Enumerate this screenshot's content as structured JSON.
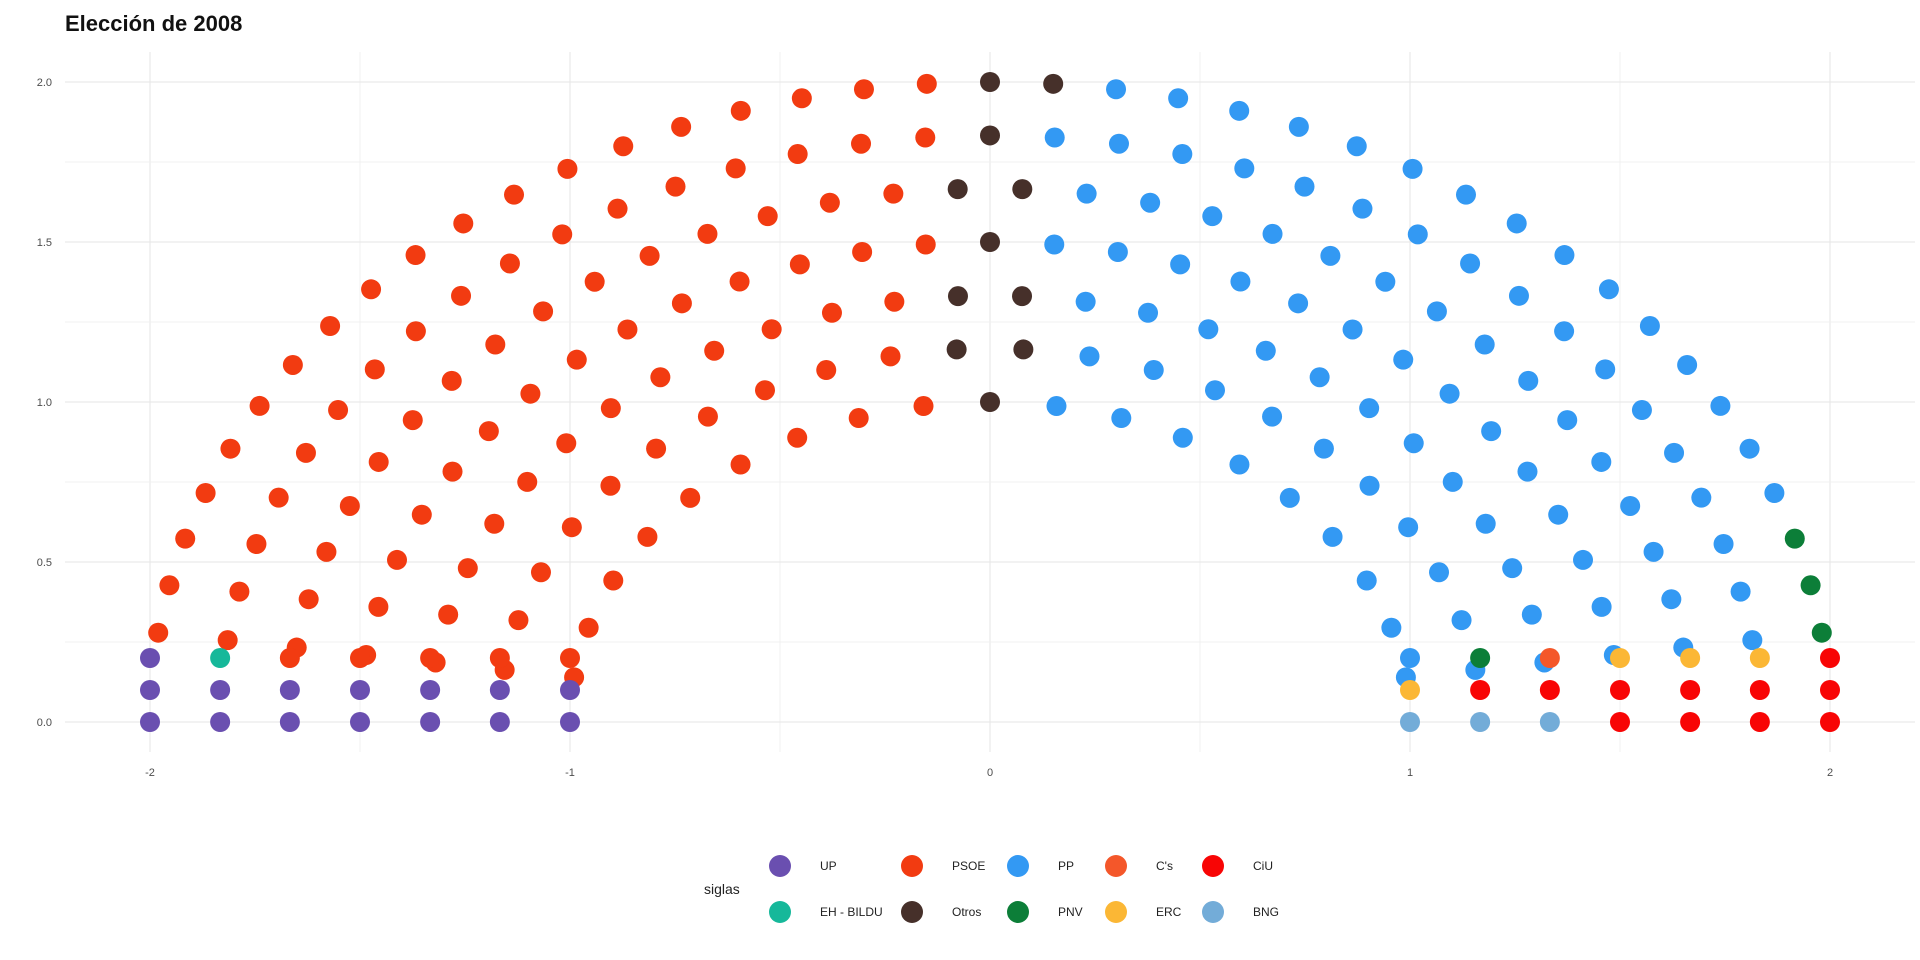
{
  "chart_data": {
    "type": "scatter",
    "subtype": "parliament-hemicycle",
    "title": "Elección de 2008",
    "xlabel": "",
    "ylabel": "",
    "xlim": [
      -2.2,
      2.2
    ],
    "ylim": [
      -0.1,
      2.1
    ],
    "x_ticks": [
      -2,
      -1,
      0,
      1,
      2
    ],
    "y_ticks": [
      0.0,
      0.5,
      1.0,
      1.5,
      2.0
    ],
    "x_tick_labels": [
      "-2",
      "-1",
      "0",
      "1",
      "2"
    ],
    "y_tick_labels": [
      "0.0",
      "0.5",
      "1.0",
      "1.5",
      "2.0"
    ],
    "grid": true,
    "legend_position": "bottom",
    "legend_title": "siglas",
    "rows": [
      {
        "radius": 2.0,
        "seats": 39
      },
      {
        "radius": 1.833,
        "seats": 35
      },
      {
        "radius": 1.667,
        "seats": 32
      },
      {
        "radius": 1.5,
        "seats": 29
      },
      {
        "radius": 1.333,
        "seats": 26
      },
      {
        "radius": 1.167,
        "seats": 22
      },
      {
        "radius": 1.0,
        "seats": 19
      }
    ],
    "series": [
      {
        "name": "UP",
        "color": "#6a4fb0",
        "seats": 13,
        "side": "left"
      },
      {
        "name": "EH - BILDU",
        "color": "#16b89a",
        "seats": 1,
        "side": "left"
      },
      {
        "name": "PSOE",
        "color": "#f23b11",
        "seats": 90,
        "side": "left"
      },
      {
        "name": "Otros",
        "color": "#46302a",
        "seats": 13,
        "side": "left"
      },
      {
        "name": "PP",
        "color": "#3399f3",
        "seats": 67,
        "side": "right"
      },
      {
        "name": "PNV",
        "color": "#0c7e38",
        "seats": 4,
        "side": "right"
      },
      {
        "name": "C's",
        "color": "#f4572a",
        "seats": 1,
        "side": "right"
      },
      {
        "name": "ERC",
        "color": "#fbb735",
        "seats": 4,
        "side": "right"
      },
      {
        "name": "CiU",
        "color": "#f80505",
        "seats": 11,
        "side": "right"
      },
      {
        "name": "BNG",
        "color": "#73acd8",
        "seats": 3,
        "side": "right"
      }
    ],
    "legend_order": [
      "UP",
      "PSOE",
      "PP",
      "C's",
      "CiU",
      "EH - BILDU",
      "Otros",
      "PNV",
      "ERC",
      "BNG"
    ],
    "bottom_block": {
      "columns_x": [
        -2,
        -1.833,
        -1.667,
        -1.5,
        -1.333,
        -1.167,
        -1,
        1,
        1.167,
        1.333,
        1.5,
        1.667,
        1.833,
        2
      ],
      "rows_y": [
        0.0,
        0.1,
        0.2
      ],
      "cells": [
        [
          "UP",
          "UP",
          "UP"
        ],
        [
          "UP",
          "UP",
          "EH - BILDU"
        ],
        [
          "UP",
          "UP",
          "PSOE"
        ],
        [
          "UP",
          "UP",
          "PSOE"
        ],
        [
          "UP",
          "UP",
          "PSOE"
        ],
        [
          "UP",
          "UP",
          "PSOE"
        ],
        [
          "UP",
          "UP",
          "PSOE"
        ],
        [
          "BNG",
          "ERC",
          "PP"
        ],
        [
          "BNG",
          "CiU",
          "PNV"
        ],
        [
          "BNG",
          "CiU",
          "C's"
        ],
        [
          "CiU",
          "CiU",
          "ERC"
        ],
        [
          "CiU",
          "CiU",
          "ERC"
        ],
        [
          "CiU",
          "CiU",
          "ERC"
        ],
        [
          "CiU",
          "CiU",
          "CiU"
        ]
      ]
    },
    "top_row_pnv_right_end": 3
  }
}
